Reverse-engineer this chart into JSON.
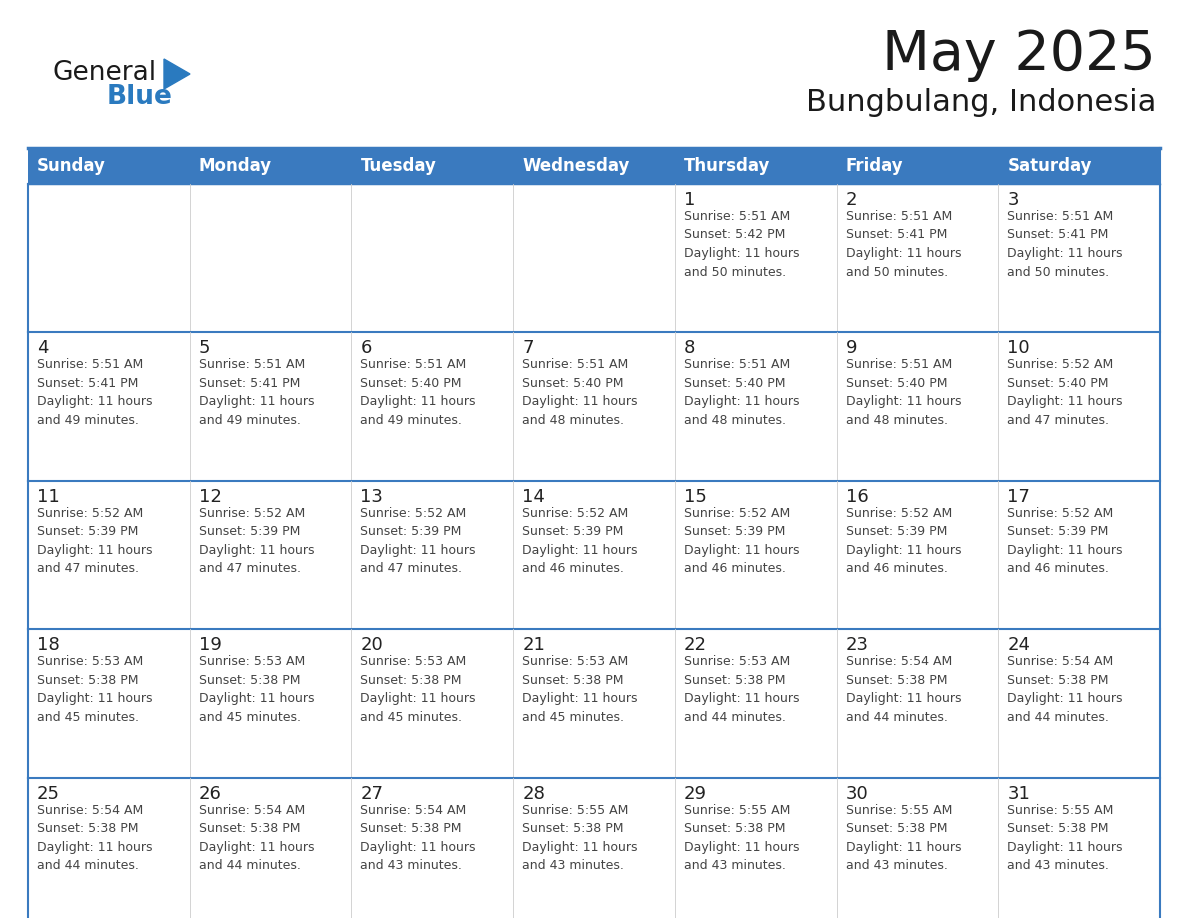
{
  "title": "May 2025",
  "subtitle": "Bungbulang, Indonesia",
  "days_of_week": [
    "Sunday",
    "Monday",
    "Tuesday",
    "Wednesday",
    "Thursday",
    "Friday",
    "Saturday"
  ],
  "header_bg": "#3a7abf",
  "header_text": "#ffffff",
  "cell_bg": "#ffffff",
  "border_color": "#3a7abf",
  "row_line_color": "#3a7abf",
  "col_line_color": "#cccccc",
  "day_number_color": "#222222",
  "info_text_color": "#444444",
  "title_color": "#1a1a1a",
  "subtitle_color": "#1a1a1a",
  "logo_dark_color": "#1a1a1a",
  "logo_blue_color": "#2a7abf",
  "calendar_data": [
    [
      {
        "day": "",
        "sunrise": "",
        "sunset": "",
        "daylight": ""
      },
      {
        "day": "",
        "sunrise": "",
        "sunset": "",
        "daylight": ""
      },
      {
        "day": "",
        "sunrise": "",
        "sunset": "",
        "daylight": ""
      },
      {
        "day": "",
        "sunrise": "",
        "sunset": "",
        "daylight": ""
      },
      {
        "day": "1",
        "sunrise": "5:51 AM",
        "sunset": "5:42 PM",
        "daylight": "11 hours and 50 minutes."
      },
      {
        "day": "2",
        "sunrise": "5:51 AM",
        "sunset": "5:41 PM",
        "daylight": "11 hours and 50 minutes."
      },
      {
        "day": "3",
        "sunrise": "5:51 AM",
        "sunset": "5:41 PM",
        "daylight": "11 hours and 50 minutes."
      }
    ],
    [
      {
        "day": "4",
        "sunrise": "5:51 AM",
        "sunset": "5:41 PM",
        "daylight": "11 hours and 49 minutes."
      },
      {
        "day": "5",
        "sunrise": "5:51 AM",
        "sunset": "5:41 PM",
        "daylight": "11 hours and 49 minutes."
      },
      {
        "day": "6",
        "sunrise": "5:51 AM",
        "sunset": "5:40 PM",
        "daylight": "11 hours and 49 minutes."
      },
      {
        "day": "7",
        "sunrise": "5:51 AM",
        "sunset": "5:40 PM",
        "daylight": "11 hours and 48 minutes."
      },
      {
        "day": "8",
        "sunrise": "5:51 AM",
        "sunset": "5:40 PM",
        "daylight": "11 hours and 48 minutes."
      },
      {
        "day": "9",
        "sunrise": "5:51 AM",
        "sunset": "5:40 PM",
        "daylight": "11 hours and 48 minutes."
      },
      {
        "day": "10",
        "sunrise": "5:52 AM",
        "sunset": "5:40 PM",
        "daylight": "11 hours and 47 minutes."
      }
    ],
    [
      {
        "day": "11",
        "sunrise": "5:52 AM",
        "sunset": "5:39 PM",
        "daylight": "11 hours and 47 minutes."
      },
      {
        "day": "12",
        "sunrise": "5:52 AM",
        "sunset": "5:39 PM",
        "daylight": "11 hours and 47 minutes."
      },
      {
        "day": "13",
        "sunrise": "5:52 AM",
        "sunset": "5:39 PM",
        "daylight": "11 hours and 47 minutes."
      },
      {
        "day": "14",
        "sunrise": "5:52 AM",
        "sunset": "5:39 PM",
        "daylight": "11 hours and 46 minutes."
      },
      {
        "day": "15",
        "sunrise": "5:52 AM",
        "sunset": "5:39 PM",
        "daylight": "11 hours and 46 minutes."
      },
      {
        "day": "16",
        "sunrise": "5:52 AM",
        "sunset": "5:39 PM",
        "daylight": "11 hours and 46 minutes."
      },
      {
        "day": "17",
        "sunrise": "5:52 AM",
        "sunset": "5:39 PM",
        "daylight": "11 hours and 46 minutes."
      }
    ],
    [
      {
        "day": "18",
        "sunrise": "5:53 AM",
        "sunset": "5:38 PM",
        "daylight": "11 hours and 45 minutes."
      },
      {
        "day": "19",
        "sunrise": "5:53 AM",
        "sunset": "5:38 PM",
        "daylight": "11 hours and 45 minutes."
      },
      {
        "day": "20",
        "sunrise": "5:53 AM",
        "sunset": "5:38 PM",
        "daylight": "11 hours and 45 minutes."
      },
      {
        "day": "21",
        "sunrise": "5:53 AM",
        "sunset": "5:38 PM",
        "daylight": "11 hours and 45 minutes."
      },
      {
        "day": "22",
        "sunrise": "5:53 AM",
        "sunset": "5:38 PM",
        "daylight": "11 hours and 44 minutes."
      },
      {
        "day": "23",
        "sunrise": "5:54 AM",
        "sunset": "5:38 PM",
        "daylight": "11 hours and 44 minutes."
      },
      {
        "day": "24",
        "sunrise": "5:54 AM",
        "sunset": "5:38 PM",
        "daylight": "11 hours and 44 minutes."
      }
    ],
    [
      {
        "day": "25",
        "sunrise": "5:54 AM",
        "sunset": "5:38 PM",
        "daylight": "11 hours and 44 minutes."
      },
      {
        "day": "26",
        "sunrise": "5:54 AM",
        "sunset": "5:38 PM",
        "daylight": "11 hours and 44 minutes."
      },
      {
        "day": "27",
        "sunrise": "5:54 AM",
        "sunset": "5:38 PM",
        "daylight": "11 hours and 43 minutes."
      },
      {
        "day": "28",
        "sunrise": "5:55 AM",
        "sunset": "5:38 PM",
        "daylight": "11 hours and 43 minutes."
      },
      {
        "day": "29",
        "sunrise": "5:55 AM",
        "sunset": "5:38 PM",
        "daylight": "11 hours and 43 minutes."
      },
      {
        "day": "30",
        "sunrise": "5:55 AM",
        "sunset": "5:38 PM",
        "daylight": "11 hours and 43 minutes."
      },
      {
        "day": "31",
        "sunrise": "5:55 AM",
        "sunset": "5:38 PM",
        "daylight": "11 hours and 43 minutes."
      }
    ]
  ]
}
